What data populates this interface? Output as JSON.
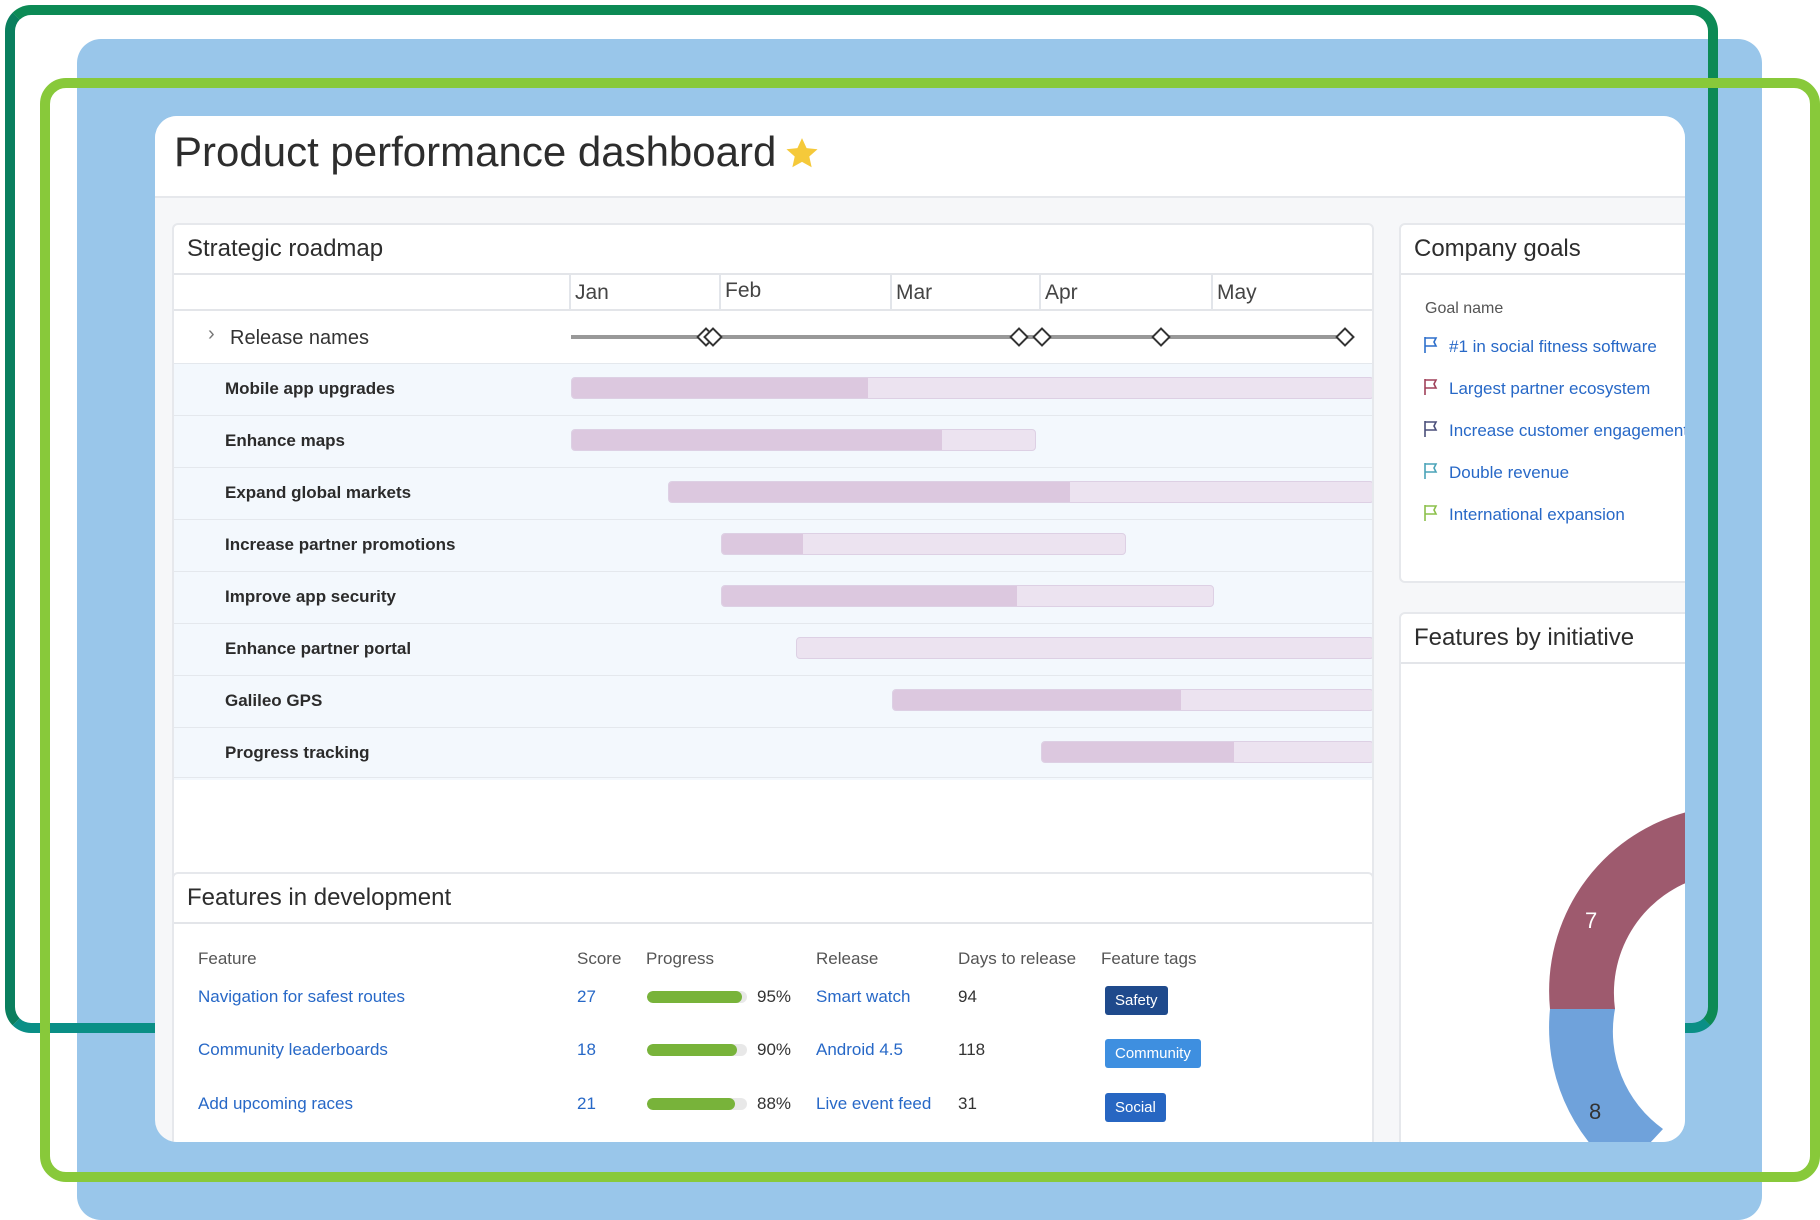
{
  "page": {
    "title": "Product performance dashboard"
  },
  "colors": {
    "blue_frame": "#99c6ea",
    "dark_frame": "#0c8a55",
    "lime_frame": "#88c93a",
    "star": "#f5c93a",
    "link": "#2768c7",
    "bar": "#dcc8df",
    "bar_track": "#ece3f0"
  },
  "roadmap": {
    "title": "Strategic roadmap",
    "months": [
      "Jan",
      "Feb",
      "Mar",
      "Apr",
      "May"
    ],
    "release_label": "Release names",
    "rows": [
      {
        "label": "Mobile app upgrades",
        "start": "Jan",
        "end": "end",
        "progress": 0.37
      },
      {
        "label": "Enhance maps",
        "start": "Jan",
        "end": "mid-Apr",
        "progress": 0.8
      },
      {
        "label": "Expand global markets",
        "start": "mid-Jan",
        "end": "end",
        "progress": 0.57
      },
      {
        "label": "Increase partner promotions",
        "start": "Feb",
        "end": "late Apr",
        "progress": 0.2
      },
      {
        "label": "Improve app security",
        "start": "Feb",
        "end": "May",
        "progress": 0.6
      },
      {
        "label": "Enhance partner portal",
        "start": "mid-Feb",
        "end": "end",
        "progress": 0.0
      },
      {
        "label": "Galileo GPS",
        "start": "Mar",
        "end": "end",
        "progress": 0.6
      },
      {
        "label": "Progress tracking",
        "start": "Apr",
        "end": "end",
        "progress": 0.58
      }
    ]
  },
  "goals": {
    "title": "Company goals",
    "column_header": "Goal name",
    "items": [
      {
        "label": "#1 in social fitness software",
        "flag_color": "#2d6fcb"
      },
      {
        "label": "Largest partner ecosystem",
        "flag_color": "#a0415a"
      },
      {
        "label": "Increase customer engagement",
        "flag_color": "#4a4f7a"
      },
      {
        "label": "Double revenue",
        "flag_color": "#4aa3b8"
      },
      {
        "label": "International expansion",
        "flag_color": "#8cc04a"
      }
    ]
  },
  "initiative": {
    "title": "Features by initiative",
    "chart_data": {
      "type": "pie",
      "segments": [
        {
          "value": 7,
          "color": "#9e5a6e"
        },
        {
          "value": 8,
          "color": "#6fa2db"
        }
      ]
    }
  },
  "features": {
    "title": "Features in development",
    "headers": {
      "feature": "Feature",
      "score": "Score",
      "progress": "Progress",
      "release": "Release",
      "days": "Days to release",
      "tags": "Feature tags"
    },
    "rows": [
      {
        "feature": "Navigation for safest routes",
        "score": "27",
        "progress": 0.95,
        "progress_label": "95%",
        "release": "Smart watch",
        "days": "94",
        "tag": "Safety",
        "tag_color": "#1f4a8c"
      },
      {
        "feature": "Community leaderboards",
        "score": "18",
        "progress": 0.9,
        "progress_label": "90%",
        "release": "Android 4.5",
        "days": "118",
        "tag": "Community",
        "tag_color": "#3e8fe0"
      },
      {
        "feature": "Add upcoming races",
        "score": "21",
        "progress": 0.88,
        "progress_label": "88%",
        "release": "Live event feed",
        "days": "31",
        "tag": "Social",
        "tag_color": "#2766c2"
      }
    ]
  }
}
